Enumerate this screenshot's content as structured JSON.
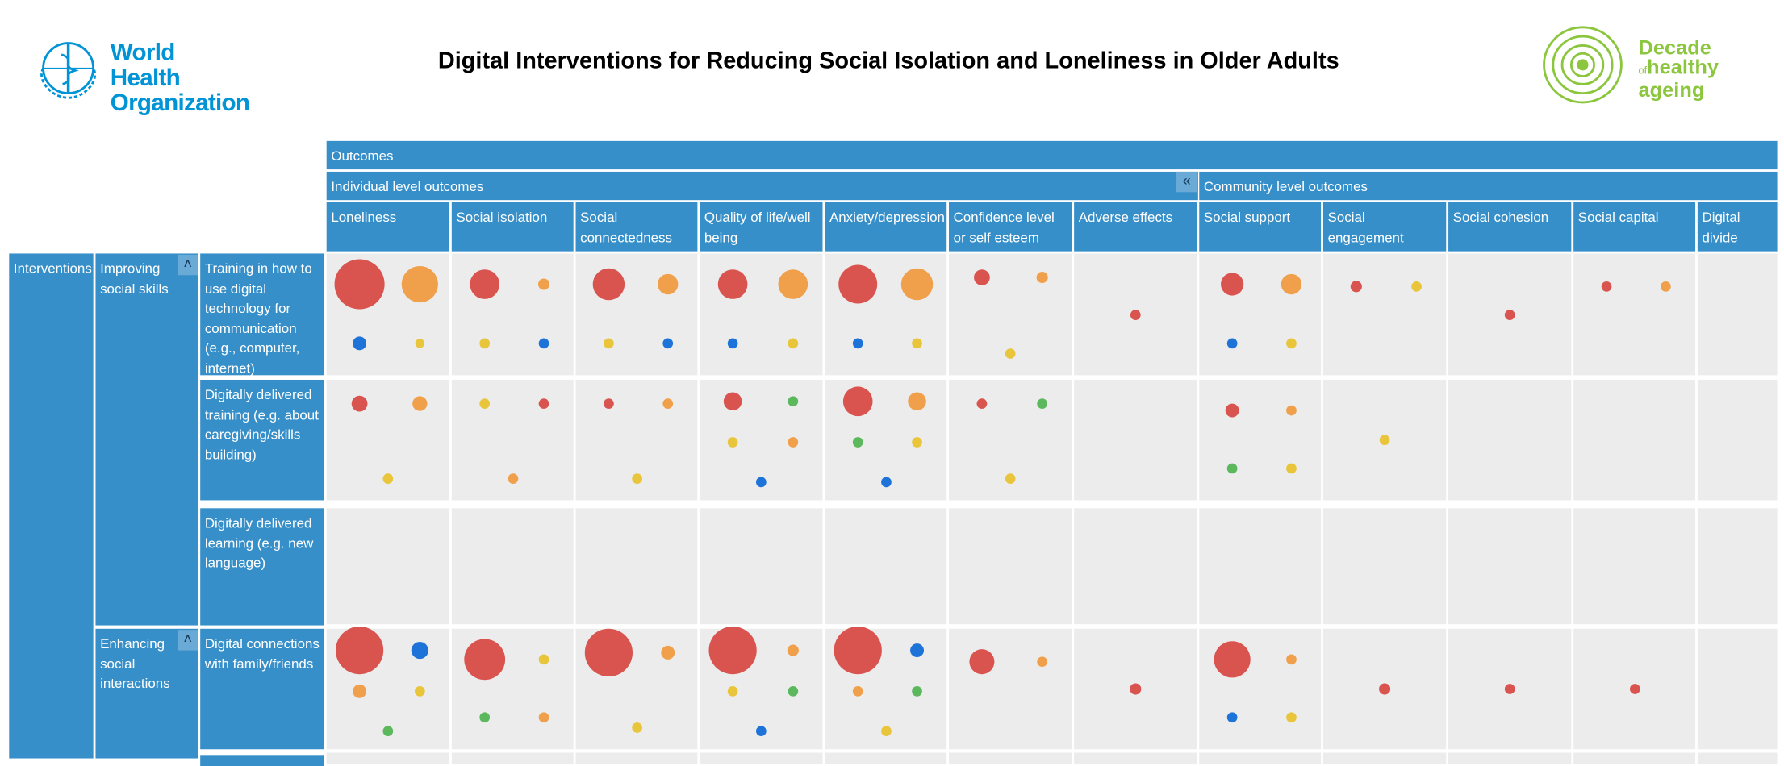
{
  "header": {
    "title": "Digital Interventions for Reducing Social Isolation and Loneliness in Older Adults",
    "who_logo": {
      "line1": "World Health",
      "line2": "Organization",
      "color": "#0093d5"
    },
    "decade_logo": {
      "line1": "Decade",
      "line2_small": "of",
      "line2": "healthy",
      "line3": "ageing",
      "color": "#8cc63f"
    }
  },
  "colors": {
    "header_blue": "#368fc9",
    "cell_bg": "#ececec",
    "red": "#d9534f",
    "orange": "#f0a04b",
    "blue": "#1e73d8",
    "yellow": "#e8c53a",
    "green": "#5cb85c"
  },
  "table": {
    "outcomes_label": "Outcomes",
    "individual_label": "Individual level outcomes",
    "community_label": "Community level outcomes",
    "collapse_icon": "double-chevron-left",
    "columns": [
      "Loneliness",
      "Social isolation",
      "Social connectedness",
      "Quality of life/well being",
      "Anxiety/depression",
      "Confidence level or self esteem",
      "Adverse effects",
      "Social support",
      "Social engagement",
      "Social cohesion",
      "Social capital",
      "Digital divide"
    ],
    "interventions_label": "Interventions",
    "categories": [
      {
        "label": "Improving social skills"
      },
      {
        "label": "Enhancing social interactions"
      }
    ],
    "rows": [
      {
        "label": "Training in how to use digital technology for communication (e.g., computer, internet)",
        "cells": [
          [
            [
              "red",
              44
            ],
            [
              "orange",
              32
            ],
            [
              "blue",
              12
            ],
            [
              "yellow",
              8
            ]
          ],
          [
            [
              "red",
              26
            ],
            [
              "orange",
              10
            ],
            [
              "yellow",
              9
            ],
            [
              "blue",
              9
            ]
          ],
          [
            [
              "red",
              28
            ],
            [
              "orange",
              18
            ],
            [
              "yellow",
              9
            ],
            [
              "blue",
              9
            ]
          ],
          [
            [
              "red",
              26
            ],
            [
              "orange",
              26
            ],
            [
              "blue",
              9
            ],
            [
              "yellow",
              9
            ]
          ],
          [
            [
              "red",
              34
            ],
            [
              "orange",
              28
            ],
            [
              "blue",
              9
            ],
            [
              "yellow",
              9
            ]
          ],
          [
            [
              "red",
              14
            ],
            [
              "orange",
              10
            ],
            [
              "yellow",
              9
            ]
          ],
          [
            [
              "red",
              9
            ]
          ],
          [
            [
              "red",
              20
            ],
            [
              "orange",
              18
            ],
            [
              "blue",
              9
            ],
            [
              "yellow",
              9
            ]
          ],
          [
            [
              "red",
              10
            ],
            [
              "yellow",
              9
            ]
          ],
          [
            [
              "red",
              9
            ]
          ],
          [
            [
              "red",
              9
            ],
            [
              "orange",
              9
            ]
          ],
          []
        ]
      },
      {
        "label": "Digitally delivered training (e.g. about caregiving/skills building)",
        "cells": [
          [
            [
              "red",
              14
            ],
            [
              "orange",
              13
            ],
            [
              "yellow",
              9
            ]
          ],
          [
            [
              "yellow",
              9
            ],
            [
              "red",
              9
            ],
            [
              "orange",
              9
            ]
          ],
          [
            [
              "red",
              9
            ],
            [
              "orange",
              9
            ],
            [
              "yellow",
              9
            ]
          ],
          [
            [
              "red",
              16
            ],
            [
              "green",
              9
            ],
            [
              "yellow",
              9
            ],
            [
              "orange",
              9
            ],
            [
              "blue",
              9
            ]
          ],
          [
            [
              "red",
              26
            ],
            [
              "orange",
              16
            ],
            [
              "green",
              9
            ],
            [
              "yellow",
              9
            ],
            [
              "blue",
              9
            ]
          ],
          [
            [
              "red",
              9
            ],
            [
              "green",
              9
            ],
            [
              "yellow",
              9
            ]
          ],
          [],
          [
            [
              "red",
              12
            ],
            [
              "orange",
              9
            ],
            [
              "green",
              9
            ],
            [
              "yellow",
              9
            ]
          ],
          [
            [
              "yellow",
              9
            ]
          ],
          [],
          [],
          []
        ]
      },
      {
        "label": "Digitally delivered learning (e.g. new language)",
        "cells": [
          [],
          [],
          [],
          [],
          [],
          [],
          [],
          [],
          [],
          [],
          [],
          []
        ]
      },
      {
        "label": "Digital connections with family/friends",
        "cells": [
          [
            [
              "red",
              42
            ],
            [
              "blue",
              15
            ],
            [
              "orange",
              12
            ],
            [
              "yellow",
              9
            ],
            [
              "green",
              9
            ]
          ],
          [
            [
              "red",
              36
            ],
            [
              "yellow",
              9
            ],
            [
              "green",
              9
            ],
            [
              "orange",
              9
            ]
          ],
          [
            [
              "red",
              42
            ],
            [
              "orange",
              12
            ],
            [
              "yellow",
              9
            ]
          ],
          [
            [
              "red",
              42
            ],
            [
              "orange",
              10
            ],
            [
              "yellow",
              9
            ],
            [
              "green",
              9
            ],
            [
              "blue",
              9
            ]
          ],
          [
            [
              "red",
              42
            ],
            [
              "blue",
              12
            ],
            [
              "orange",
              9
            ],
            [
              "green",
              9
            ],
            [
              "yellow",
              9
            ]
          ],
          [
            [
              "red",
              22
            ],
            [
              "orange",
              9
            ]
          ],
          [
            [
              "red",
              10
            ]
          ],
          [
            [
              "red",
              32
            ],
            [
              "orange",
              9
            ],
            [
              "blue",
              9
            ],
            [
              "yellow",
              9
            ]
          ],
          [
            [
              "red",
              10
            ]
          ],
          [
            [
              "red",
              9
            ]
          ],
          [
            [
              "red",
              9
            ]
          ],
          []
        ]
      }
    ]
  }
}
